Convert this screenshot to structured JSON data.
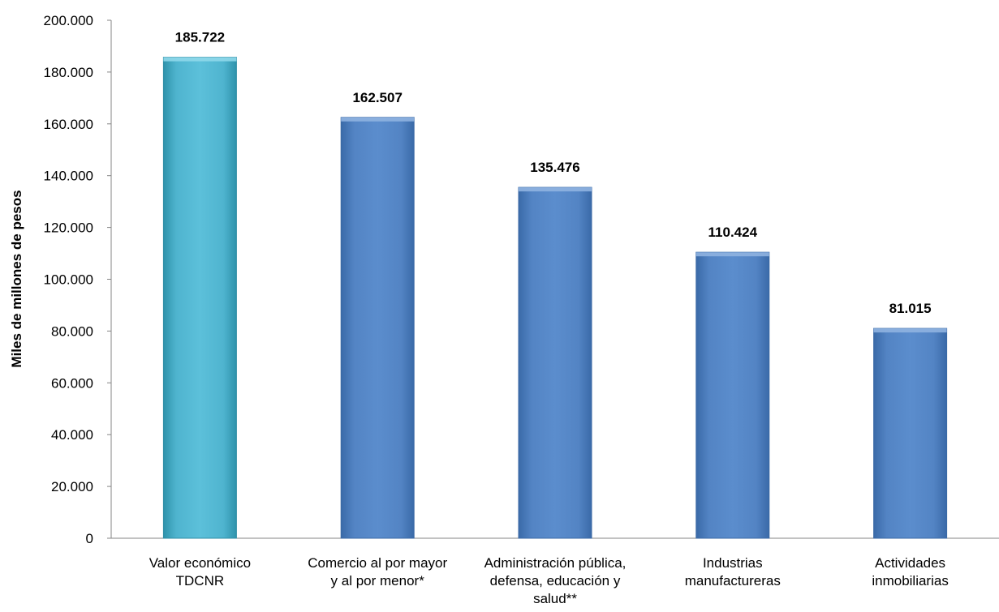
{
  "chart_data": {
    "type": "bar",
    "ylabel": "Miles de millones de pesos",
    "ylim": [
      0,
      200000
    ],
    "y_tick_step": 20000,
    "y_tick_labels": [
      "0",
      "20.000",
      "40.000",
      "60.000",
      "80.000",
      "100.000",
      "120.000",
      "140.000",
      "160.000",
      "180.000",
      "200.000"
    ],
    "grid": false,
    "legend": "none",
    "categories": [
      [
        "Valor económico",
        "TDCNR"
      ],
      [
        "Comercio al por mayor",
        "y al por menor*"
      ],
      [
        "Administración pública,",
        "defensa, educación y",
        "salud**"
      ],
      [
        "Industrias",
        "manufactureras"
      ],
      [
        "Actividades",
        "inmobiliarias"
      ]
    ],
    "values": [
      185722,
      162507,
      135476,
      110424,
      81015
    ],
    "data_labels": [
      "185.722",
      "162.507",
      "135.476",
      "110.424",
      "81.015"
    ],
    "bar_colors": [
      "#4BACC6",
      "#4F81BD",
      "#4F81BD",
      "#4F81BD",
      "#4F81BD"
    ]
  }
}
